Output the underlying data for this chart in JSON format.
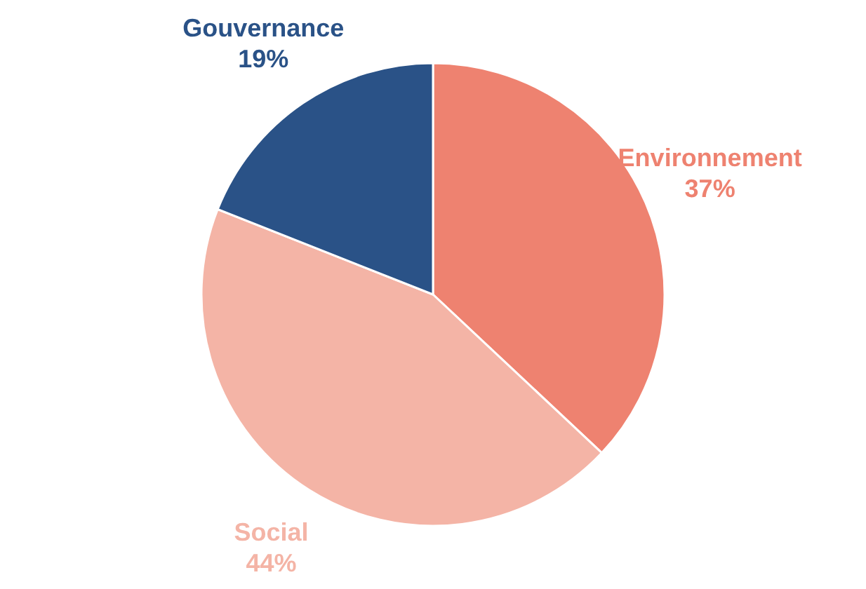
{
  "chart_data": {
    "type": "pie",
    "categories": [
      "Environnement",
      "Social",
      "Gouvernance"
    ],
    "values": [
      37,
      44,
      19
    ],
    "colors": [
      "#ee8270",
      "#f4b4a6",
      "#2a5287"
    ],
    "value_labels": [
      "37%",
      "44%",
      "19%"
    ],
    "legend": false
  }
}
